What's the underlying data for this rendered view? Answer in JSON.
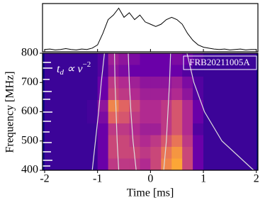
{
  "chart_data": [
    {
      "type": "line",
      "color": "#000000",
      "xlim": [
        -2.04,
        2.03
      ],
      "ylim": [
        0,
        1.05
      ],
      "x": [
        -2,
        -1.9,
        -1.8,
        -1.7,
        -1.6,
        -1.5,
        -1.4,
        -1.3,
        -1.2,
        -1.1,
        -1,
        -0.9,
        -0.8,
        -0.7,
        -0.6,
        -0.5,
        -0.4,
        -0.3,
        -0.2,
        -0.1,
        0,
        0.1,
        0.2,
        0.3,
        0.4,
        0.5,
        0.6,
        0.7,
        0.8,
        0.9,
        1,
        1.1,
        1.2,
        1.3,
        1.4,
        1.5,
        1.6,
        1.7,
        1.8,
        1.9,
        2
      ],
      "values": [
        0.05,
        0.06,
        0.04,
        0.05,
        0.07,
        0.05,
        0.04,
        0.06,
        0.05,
        0.08,
        0.15,
        0.4,
        0.7,
        0.8,
        0.95,
        0.75,
        0.85,
        0.7,
        0.8,
        0.65,
        0.6,
        0.55,
        0.6,
        0.7,
        0.75,
        0.7,
        0.6,
        0.4,
        0.25,
        0.15,
        0.1,
        0.08,
        0.06,
        0.05,
        0.06,
        0.04,
        0.05,
        0.06,
        0.04,
        0.05,
        0.05
      ]
    },
    {
      "type": "heatmap",
      "xlabel": "Time [ms]",
      "ylabel": "Frequency [MHz]",
      "xlim": [
        -2.04,
        2.03
      ],
      "ylim": [
        400,
        800
      ],
      "xticks": [
        -2,
        -1,
        0,
        1,
        2
      ],
      "yticks": [
        400,
        500,
        600,
        700,
        800
      ],
      "annotation": "FRB20211005A",
      "formula": {
        "base": "t",
        "sub": "d",
        "mid": " ∝ ν",
        "sup": "−2"
      },
      "cmap": [
        "#0d0887",
        "#6a00a8",
        "#b12a90",
        "#e16462",
        "#fca636",
        "#f0f921"
      ],
      "clim": [
        0,
        1
      ],
      "xbins": [
        -2,
        -1.8,
        -1.6,
        -1.4,
        -1.2,
        -1,
        -0.8,
        -0.6,
        -0.4,
        -0.2,
        0,
        0.2,
        0.4,
        0.6,
        0.8,
        1,
        1.2,
        1.4,
        1.6,
        1.8,
        2
      ],
      "ybins": [
        800,
        760,
        720,
        680,
        640,
        600,
        560,
        520,
        480,
        440,
        400
      ],
      "z": [
        [
          0.1,
          0.1,
          0.1,
          0.1,
          0.1,
          0.15,
          0.35,
          0.3,
          0.25,
          0.2,
          0.2,
          0.2,
          0.25,
          0.2,
          0.15,
          0.1,
          0.1,
          0.1,
          0.1,
          0.1
        ],
        [
          0.1,
          0.1,
          0.1,
          0.1,
          0.1,
          0.15,
          0.3,
          0.25,
          0.2,
          0.2,
          0.2,
          0.2,
          0.2,
          0.15,
          0.1,
          0.1,
          0.1,
          0.1,
          0.1,
          0.1
        ],
        [
          0.1,
          0.1,
          0.1,
          0.1,
          0.1,
          0.2,
          0.45,
          0.4,
          0.35,
          0.3,
          0.3,
          0.3,
          0.35,
          0.25,
          0.15,
          0.1,
          0.1,
          0.1,
          0.1,
          0.1
        ],
        [
          0.1,
          0.1,
          0.1,
          0.1,
          0.1,
          0.2,
          0.5,
          0.45,
          0.4,
          0.35,
          0.35,
          0.35,
          0.4,
          0.3,
          0.15,
          0.1,
          0.1,
          0.1,
          0.1,
          0.1
        ],
        [
          0.1,
          0.1,
          0.1,
          0.1,
          0.12,
          0.3,
          0.7,
          0.6,
          0.5,
          0.4,
          0.4,
          0.45,
          0.55,
          0.4,
          0.2,
          0.1,
          0.1,
          0.1,
          0.1,
          0.1
        ],
        [
          0.1,
          0.1,
          0.1,
          0.1,
          0.12,
          0.25,
          0.6,
          0.55,
          0.45,
          0.4,
          0.4,
          0.45,
          0.55,
          0.4,
          0.2,
          0.1,
          0.1,
          0.1,
          0.1,
          0.1
        ],
        [
          0.1,
          0.1,
          0.1,
          0.1,
          0.1,
          0.2,
          0.45,
          0.45,
          0.4,
          0.35,
          0.35,
          0.45,
          0.55,
          0.4,
          0.15,
          0.1,
          0.1,
          0.1,
          0.1,
          0.1
        ],
        [
          0.1,
          0.1,
          0.1,
          0.1,
          0.1,
          0.2,
          0.5,
          0.5,
          0.45,
          0.4,
          0.45,
          0.55,
          0.65,
          0.45,
          0.2,
          0.1,
          0.1,
          0.1,
          0.1,
          0.1
        ],
        [
          0.1,
          0.1,
          0.1,
          0.1,
          0.1,
          0.2,
          0.5,
          0.5,
          0.5,
          0.45,
          0.5,
          0.65,
          0.75,
          0.5,
          0.2,
          0.1,
          0.1,
          0.1,
          0.1,
          0.1
        ],
        [
          0.1,
          0.1,
          0.1,
          0.1,
          0.1,
          0.2,
          0.45,
          0.45,
          0.45,
          0.4,
          0.5,
          0.7,
          0.8,
          0.5,
          0.2,
          0.1,
          0.1,
          0.1,
          0.1,
          0.1
        ]
      ],
      "curve_color": "#dddddd",
      "curves": [
        {
          "x": [
            -0.87,
            -0.93,
            -0.98,
            -1.04,
            -1.1
          ],
          "y": [
            800,
            700,
            600,
            500,
            400
          ]
        },
        {
          "x": [
            -0.68,
            -0.67,
            -0.65,
            -0.63,
            -0.6
          ],
          "y": [
            800,
            700,
            600,
            500,
            400
          ]
        },
        {
          "x": [
            -0.42,
            -0.4,
            -0.37,
            -0.33,
            -0.27
          ],
          "y": [
            800,
            700,
            600,
            500,
            400
          ]
        },
        {
          "x": [
            0.38,
            0.36,
            0.33,
            0.3,
            0.25
          ],
          "y": [
            800,
            700,
            600,
            500,
            400
          ]
        },
        {
          "x": [
            0.69,
            0.82,
            1.02,
            1.35,
            1.95
          ],
          "y": [
            800,
            700,
            600,
            500,
            400
          ]
        }
      ]
    }
  ]
}
